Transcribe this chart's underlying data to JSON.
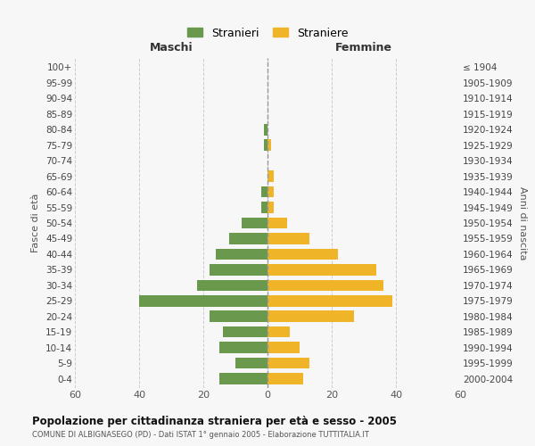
{
  "age_groups": [
    "100+",
    "95-99",
    "90-94",
    "85-89",
    "80-84",
    "75-79",
    "70-74",
    "65-69",
    "60-64",
    "55-59",
    "50-54",
    "45-49",
    "40-44",
    "35-39",
    "30-34",
    "25-29",
    "20-24",
    "15-19",
    "10-14",
    "5-9",
    "0-4"
  ],
  "birth_years": [
    "≤ 1904",
    "1905-1909",
    "1910-1914",
    "1915-1919",
    "1920-1924",
    "1925-1929",
    "1930-1934",
    "1935-1939",
    "1940-1944",
    "1945-1949",
    "1950-1954",
    "1955-1959",
    "1960-1964",
    "1965-1969",
    "1970-1974",
    "1975-1979",
    "1980-1984",
    "1985-1989",
    "1990-1994",
    "1995-1999",
    "2000-2004"
  ],
  "males": [
    0,
    0,
    0,
    0,
    1,
    1,
    0,
    0,
    2,
    2,
    8,
    12,
    16,
    18,
    22,
    40,
    18,
    14,
    15,
    10,
    15
  ],
  "females": [
    0,
    0,
    0,
    0,
    0,
    1,
    0,
    2,
    2,
    2,
    6,
    13,
    22,
    34,
    36,
    39,
    27,
    7,
    10,
    13,
    11
  ],
  "male_color": "#6a994e",
  "female_color": "#f0b429",
  "background_color": "#f7f7f7",
  "grid_color": "#cccccc",
  "center_line_color": "#999999",
  "title": "Popolazione per cittadinanza straniera per età e sesso - 2005",
  "subtitle": "COMUNE DI ALBIGNASEGO (PD) - Dati ISTAT 1° gennaio 2005 - Elaborazione TUTTITALIA.IT",
  "left_header": "Maschi",
  "right_header": "Femmine",
  "left_axis_label": "Fasce di età",
  "right_axis_label": "Anni di nascita",
  "legend_male": "Stranieri",
  "legend_female": "Straniere",
  "xlim": 60
}
